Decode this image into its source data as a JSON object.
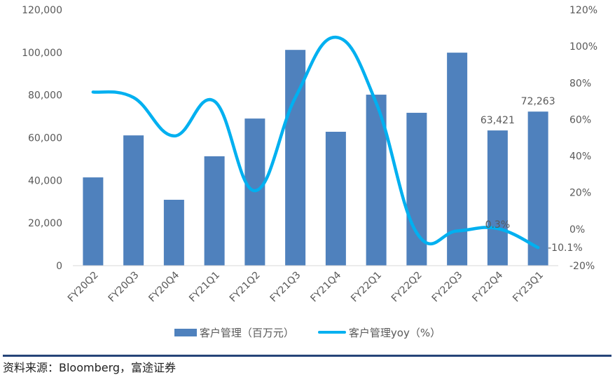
{
  "chart_data": {
    "type": "bar+line",
    "title": "",
    "categories": [
      "FY20Q2",
      "FY20Q3",
      "FY20Q4",
      "FY21Q1",
      "FY21Q2",
      "FY21Q3",
      "FY21Q4",
      "FY22Q1",
      "FY22Q2",
      "FY22Q3",
      "FY22Q4",
      "FY23Q1"
    ],
    "series": [
      {
        "name": "客户管理（百万元）",
        "type": "bar",
        "axis": "left",
        "color": "#4f81bd",
        "values": [
          41400,
          61100,
          30900,
          51300,
          69000,
          101200,
          62800,
          80200,
          71700,
          99900,
          63421,
          72263
        ]
      },
      {
        "name": "客户管理yoy（%）",
        "type": "line",
        "axis": "right",
        "color": "#00b0f0",
        "values": [
          75,
          72,
          51,
          70,
          21,
          72,
          105,
          69,
          -2,
          -1,
          0.3,
          -10.1
        ]
      }
    ],
    "data_labels": [
      {
        "series": 0,
        "index": 10,
        "text": "63,421"
      },
      {
        "series": 0,
        "index": 11,
        "text": "72,263"
      },
      {
        "series": 1,
        "index": 10,
        "text": "0.3%"
      },
      {
        "series": 1,
        "index": 11,
        "text": "-10.1%"
      }
    ],
    "left_axis": {
      "ylim": [
        0,
        120000
      ],
      "ticks": [
        "0",
        "20,000",
        "40,000",
        "60,000",
        "80,000",
        "100,000",
        "120,000"
      ]
    },
    "right_axis": {
      "ylim": [
        -20,
        120
      ],
      "ticks": [
        "-20%",
        "0%",
        "20%",
        "40%",
        "60%",
        "80%",
        "100%",
        "120%"
      ]
    },
    "xlabel": "",
    "ylabel": "",
    "grid": false,
    "legend_position": "bottom"
  },
  "legend": {
    "bar_label": "客户管理（百万元）",
    "line_label": "客户管理yoy（%）"
  },
  "footer": {
    "source": "资料来源：Bloomberg，富途证券"
  }
}
